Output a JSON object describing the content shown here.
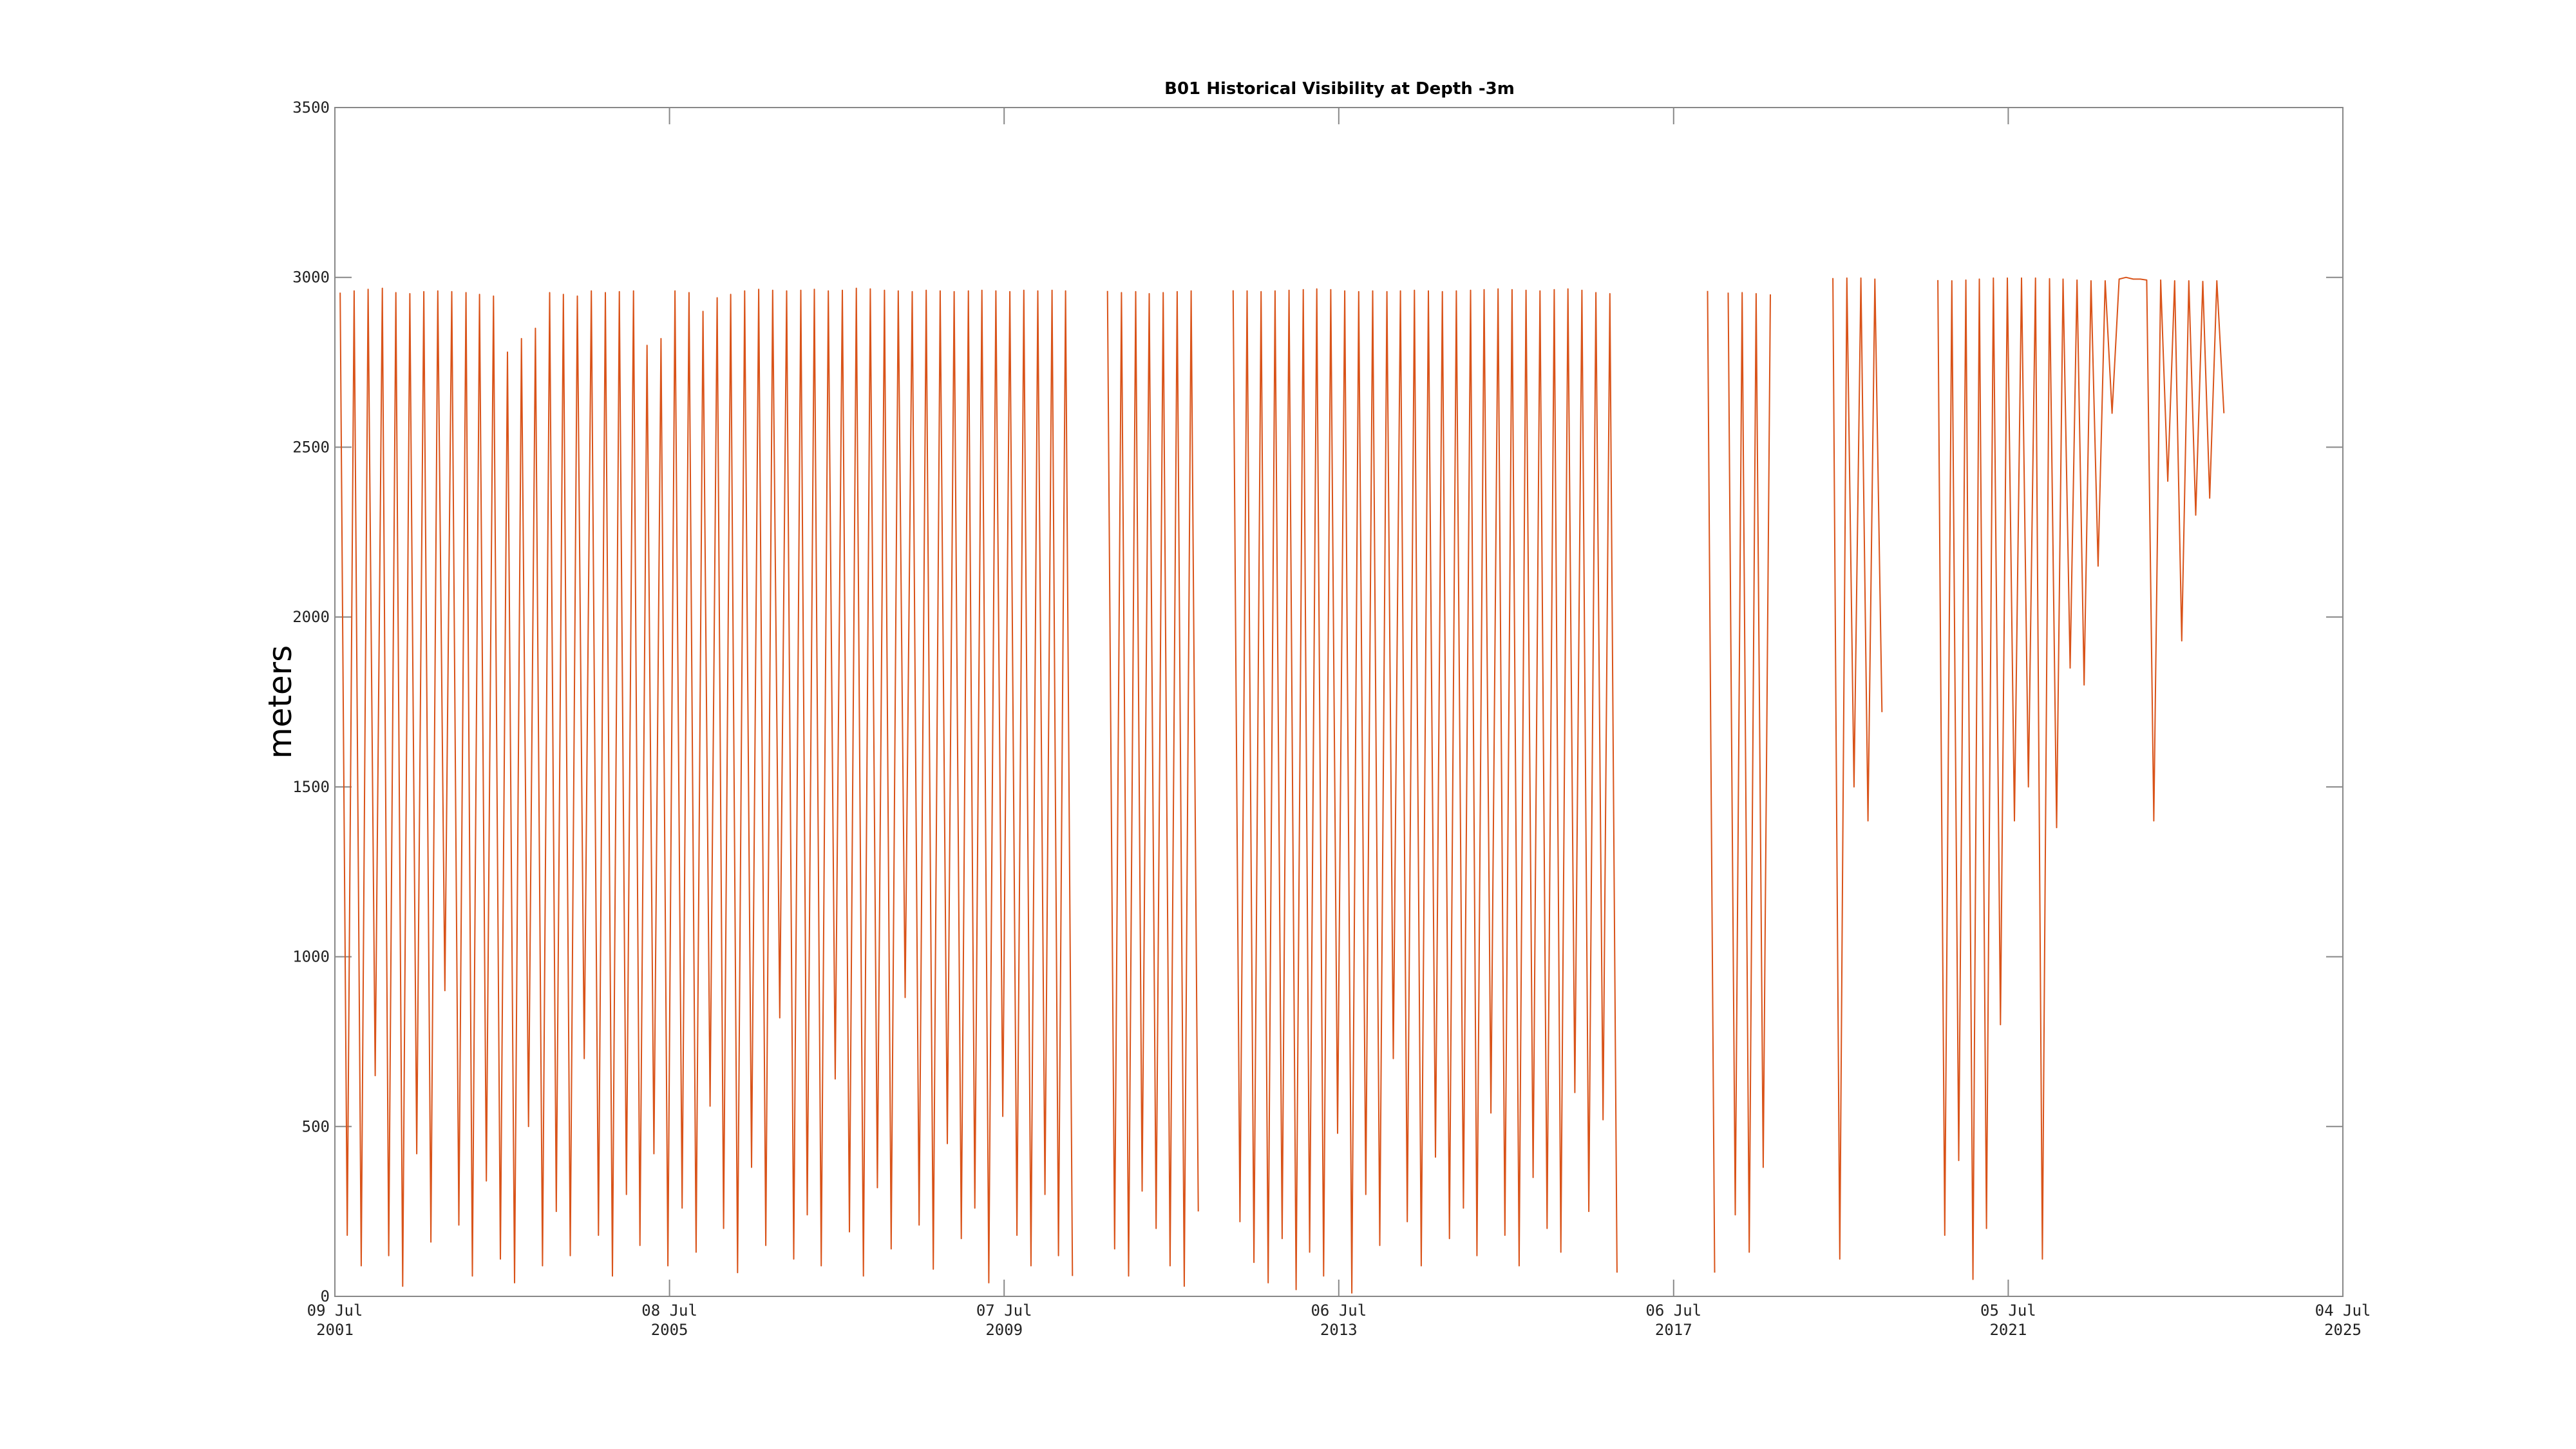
{
  "chart_data": {
    "type": "line",
    "title": "B01 Historical Visibility at Depth -3m",
    "y_label": "meters",
    "color": "#d95319",
    "xlim": [
      "2001-07-09",
      "2025-07-04"
    ],
    "ylim": [
      0,
      3500
    ],
    "yticks": [
      0,
      500,
      1000,
      1500,
      2000,
      2500,
      3000,
      3500
    ],
    "xticks": [
      {
        "value": "2001-07-09",
        "label": [
          "09 Jul",
          "2001"
        ]
      },
      {
        "value": "2005-07-08",
        "label": [
          "08 Jul",
          "2005"
        ]
      },
      {
        "value": "2009-07-07",
        "label": [
          "07 Jul",
          "2009"
        ]
      },
      {
        "value": "2013-07-06",
        "label": [
          "06 Jul",
          "2013"
        ]
      },
      {
        "value": "2017-07-06",
        "label": [
          "06 Jul",
          "2017"
        ]
      },
      {
        "value": "2021-07-05",
        "label": [
          "05 Jul",
          "2021"
        ]
      },
      {
        "value": "2025-07-04",
        "label": [
          "04 Jul",
          "2025"
        ]
      }
    ],
    "x": [
      "2001-08-01",
      "2001-09-01",
      "2001-10-01",
      "2001-11-01",
      "2001-12-01",
      "2002-01-01",
      "2002-02-01",
      "2002-03-01",
      "2002-04-01",
      "2002-05-01",
      "2002-06-01",
      "2002-07-01",
      "2002-08-01",
      "2002-09-01",
      "2002-10-01",
      "2002-11-01",
      "2002-12-01",
      "2003-01-01",
      "2003-02-01",
      "2003-03-01",
      "2003-04-01",
      "2003-05-01",
      "2003-06-01",
      "2003-07-01",
      "2003-08-01",
      "2003-09-01",
      "2003-10-01",
      "2003-11-01",
      "2003-12-01",
      "2004-01-01",
      "2004-02-01",
      "2004-03-01",
      "2004-04-01",
      "2004-05-01",
      "2004-06-01",
      "2004-07-01",
      "2004-08-01",
      "2004-09-01",
      "2004-10-01",
      "2004-11-01",
      "2004-12-01",
      "2005-01-01",
      "2005-02-01",
      "2005-03-01",
      "2005-04-01",
      "2005-05-01",
      "2005-06-01",
      "2005-07-01",
      "2005-08-01",
      "2005-09-01",
      "2005-10-01",
      "2005-11-01",
      "2005-12-01",
      "2006-01-01",
      "2006-02-01",
      "2006-03-01",
      "2006-04-01",
      "2006-05-01",
      "2006-06-01",
      "2006-07-01",
      "2006-08-01",
      "2006-09-01",
      "2006-10-01",
      "2006-11-01",
      "2006-12-01",
      "2007-01-01",
      "2007-02-01",
      "2007-03-01",
      "2007-04-01",
      "2007-05-01",
      "2007-06-01",
      "2007-07-01",
      "2007-08-01",
      "2007-09-01",
      "2007-10-01",
      "2007-11-01",
      "2007-12-01",
      "2008-01-01",
      "2008-02-01",
      "2008-03-01",
      "2008-04-01",
      "2008-05-01",
      "2008-06-01",
      "2008-07-01",
      "2008-08-01",
      "2008-09-01",
      "2008-10-01",
      "2008-11-01",
      "2008-12-01",
      "2009-01-01",
      "2009-02-01",
      "2009-03-01",
      "2009-04-01",
      "2009-05-01",
      "2009-06-01",
      "2009-07-01",
      "2009-08-01",
      "2009-09-01",
      "2009-10-01",
      "2009-11-01",
      "2009-12-01",
      "2010-01-01",
      "2010-02-01",
      "2010-03-01",
      "2010-04-01",
      "2010-05-01",
      "2010-07-01",
      "2010-10-01",
      "2010-11-01",
      "2010-12-01",
      "2011-01-01",
      "2011-02-01",
      "2011-03-01",
      "2011-04-01",
      "2011-05-01",
      "2011-06-01",
      "2011-07-01",
      "2011-08-01",
      "2011-09-01",
      "2011-10-01",
      "2011-11-01",
      "2012-01-01",
      "2012-04-01",
      "2012-05-01",
      "2012-06-01",
      "2012-07-01",
      "2012-08-01",
      "2012-09-01",
      "2012-10-01",
      "2012-11-01",
      "2012-12-01",
      "2013-01-01",
      "2013-02-01",
      "2013-03-01",
      "2013-04-01",
      "2013-05-01",
      "2013-06-01",
      "2013-07-01",
      "2013-08-01",
      "2013-09-01",
      "2013-10-01",
      "2013-11-01",
      "2013-12-01",
      "2014-01-01",
      "2014-02-01",
      "2014-03-01",
      "2014-04-01",
      "2014-05-01",
      "2014-06-01",
      "2014-07-01",
      "2014-08-01",
      "2014-09-01",
      "2014-10-01",
      "2014-11-01",
      "2014-12-01",
      "2015-01-01",
      "2015-02-01",
      "2015-03-01",
      "2015-04-01",
      "2015-05-01",
      "2015-06-01",
      "2015-07-01",
      "2015-08-01",
      "2015-09-01",
      "2015-10-01",
      "2015-11-01",
      "2015-12-01",
      "2016-01-01",
      "2016-02-01",
      "2016-03-01",
      "2016-04-01",
      "2016-05-01",
      "2016-06-01",
      "2016-07-01",
      "2016-08-01",
      "2016-09-01",
      "2016-10-01",
      "2016-11-01",
      "2017-05-01",
      "2017-12-01",
      "2018-01-01",
      "2018-02-01",
      "2018-03-01",
      "2018-04-01",
      "2018-05-01",
      "2018-06-01",
      "2018-07-01",
      "2018-08-01",
      "2018-09-01",
      "2019-01-01",
      "2019-06-01",
      "2019-07-01",
      "2019-08-01",
      "2019-09-01",
      "2019-10-01",
      "2019-11-01",
      "2019-12-01",
      "2020-01-01",
      "2020-05-01",
      "2020-09-01",
      "2020-10-01",
      "2020-11-01",
      "2020-12-01",
      "2021-01-01",
      "2021-02-01",
      "2021-03-01",
      "2021-04-01",
      "2021-05-01",
      "2021-06-01",
      "2021-07-01",
      "2021-08-01",
      "2021-09-01",
      "2021-10-01",
      "2021-11-01",
      "2021-12-01",
      "2022-01-01",
      "2022-02-01",
      "2022-03-01",
      "2022-04-01",
      "2022-05-01",
      "2022-06-01",
      "2022-07-01",
      "2022-08-01",
      "2022-09-01",
      "2022-10-01",
      "2022-11-01",
      "2022-12-01",
      "2023-01-01",
      "2023-02-01",
      "2023-03-01",
      "2023-04-01",
      "2023-05-01",
      "2023-06-01",
      "2023-07-01",
      "2023-08-01",
      "2023-09-01",
      "2023-10-01",
      "2023-11-01",
      "2023-12-01",
      "2024-01-01",
      "2024-02-01"
    ],
    "values": [
      2955,
      180,
      2960,
      90,
      2965,
      650,
      2968,
      120,
      2955,
      30,
      2952,
      420,
      2958,
      160,
      2960,
      900,
      2958,
      210,
      2955,
      60,
      2950,
      340,
      2945,
      110,
      2780,
      40,
      2820,
      500,
      2850,
      90,
      2955,
      250,
      2950,
      120,
      2945,
      700,
      2960,
      180,
      2955,
      60,
      2958,
      300,
      2960,
      150,
      2800,
      420,
      2820,
      90,
      2960,
      260,
      2955,
      130,
      2900,
      560,
      2940,
      200,
      2950,
      70,
      2960,
      380,
      2965,
      150,
      2962,
      820,
      2960,
      110,
      2962,
      240,
      2965,
      90,
      2960,
      640,
      2962,
      190,
      2968,
      60,
      2966,
      320,
      2962,
      140,
      2960,
      880,
      2958,
      210,
      2962,
      80,
      2960,
      450,
      2958,
      170,
      2960,
      260,
      2962,
      40,
      2960,
      530,
      2958,
      180,
      2962,
      90,
      2960,
      300,
      2962,
      120,
      2960,
      60,
      null,
      2960,
      140,
      2955,
      60,
      2958,
      310,
      2952,
      200,
      2955,
      90,
      2958,
      30,
      2960,
      250,
      null,
      2962,
      220,
      2960,
      100,
      2958,
      40,
      2960,
      170,
      2962,
      20,
      2964,
      130,
      2966,
      60,
      2964,
      480,
      2960,
      10,
      2958,
      300,
      2960,
      150,
      2958,
      700,
      2960,
      220,
      2962,
      90,
      2960,
      410,
      2958,
      170,
      2960,
      260,
      2962,
      120,
      2964,
      540,
      2966,
      180,
      2964,
      90,
      2962,
      350,
      2960,
      200,
      2964,
      130,
      2966,
      600,
      2962,
      250,
      2955,
      520,
      2952,
      70,
      null,
      2960,
      70,
      null,
      2955,
      240,
      2955,
      130,
      2952,
      380,
      2950,
      null,
      2998,
      110,
      2998,
      1500,
      2998,
      1400,
      2995,
      1720,
      null,
      2992,
      180,
      2990,
      400,
      2992,
      50,
      2995,
      200,
      2998,
      800,
      2998,
      1400,
      2998,
      1500,
      2998,
      110,
      2996,
      1380,
      2995,
      1850,
      2992,
      1800,
      2990,
      2150,
      2990,
      2600,
      2995,
      3000,
      2995,
      2995,
      2992,
      1400,
      2992,
      2400,
      2990,
      1930,
      2990,
      2300,
      2988,
      2350,
      2990,
      2600
    ]
  }
}
